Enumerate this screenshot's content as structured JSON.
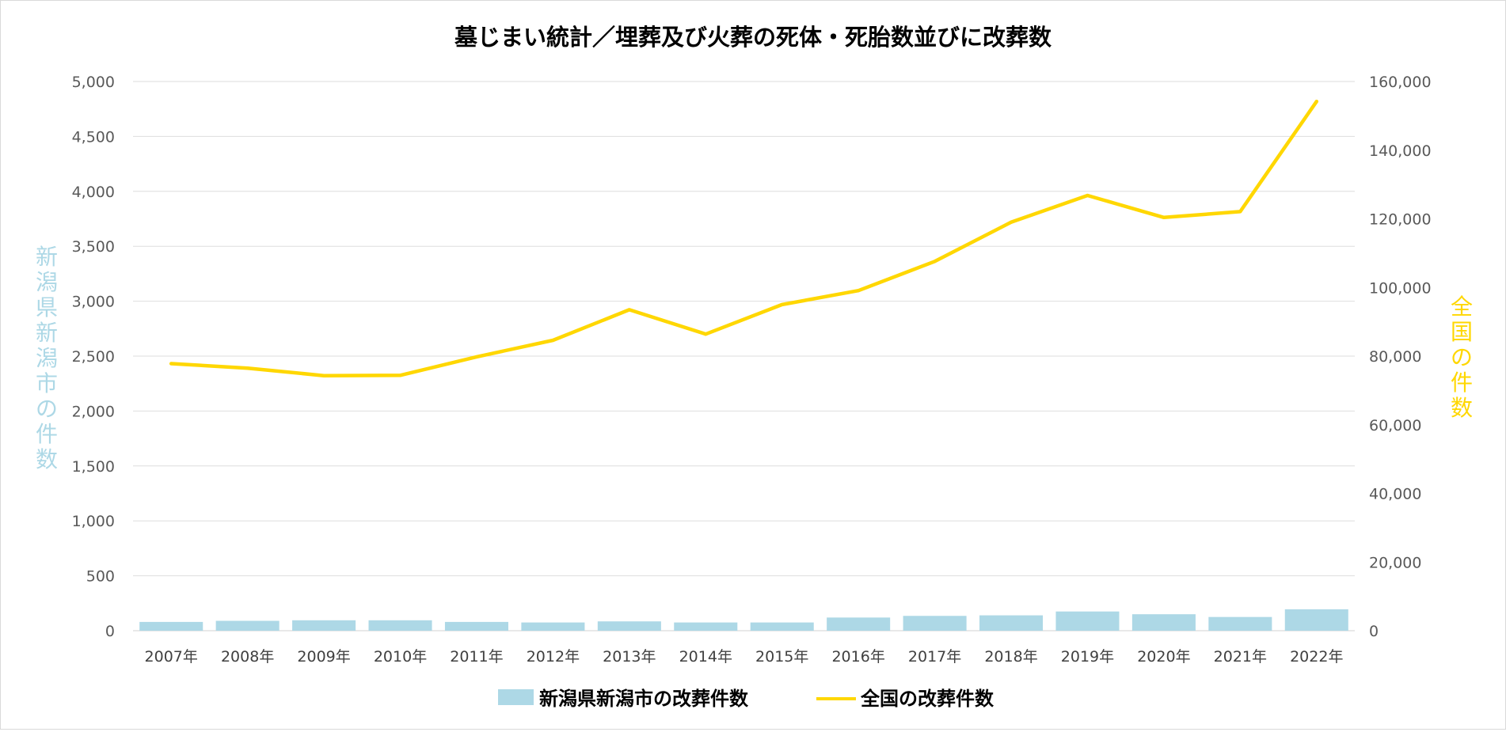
{
  "chart_data": {
    "type": "bar+line",
    "title": "墓じまい統計／埋葬及び火葬の死体・死胎数並びに改葬数",
    "categories": [
      "2007年",
      "2008年",
      "2009年",
      "2010年",
      "2011年",
      "2012年",
      "2013年",
      "2014年",
      "2015年",
      "2016年",
      "2017年",
      "2018年",
      "2019年",
      "2020年",
      "2021年",
      "2022年"
    ],
    "series": [
      {
        "name": "新潟県新潟市の改葬件数",
        "type": "bar",
        "axis": "left",
        "color": "#add8e6",
        "values": [
          80,
          90,
          95,
          95,
          80,
          75,
          85,
          75,
          75,
          120,
          135,
          140,
          175,
          150,
          125,
          195
        ]
      },
      {
        "name": "全国の改葬件数",
        "type": "line",
        "axis": "right",
        "color": "#ffd700",
        "values": [
          77800,
          76500,
          74300,
          74400,
          79800,
          84600,
          93500,
          86400,
          95000,
          99100,
          107600,
          119000,
          126800,
          120400,
          122100,
          154200
        ]
      }
    ],
    "left_axis": {
      "label": "新潟県新潟市の件数",
      "label_color": "#add8e6",
      "ylim": [
        0,
        5000
      ],
      "ticks": [
        0,
        500,
        1000,
        1500,
        2000,
        2500,
        3000,
        3500,
        4000,
        4500,
        5000
      ],
      "tick_labels": [
        "0",
        "500",
        "1,000",
        "1,500",
        "2,000",
        "2,500",
        "3,000",
        "3,500",
        "4,000",
        "4,500",
        "5,000"
      ]
    },
    "right_axis": {
      "label": "全国の件数",
      "label_color": "#ffd700",
      "ylim": [
        0,
        160000
      ],
      "ticks": [
        0,
        20000,
        40000,
        60000,
        80000,
        100000,
        120000,
        140000,
        160000
      ],
      "tick_labels": [
        "0",
        "20,000",
        "40,000",
        "60,000",
        "80,000",
        "100,000",
        "120,000",
        "140,000",
        "160,000"
      ]
    },
    "grid": true,
    "legend": "bottom-center"
  }
}
